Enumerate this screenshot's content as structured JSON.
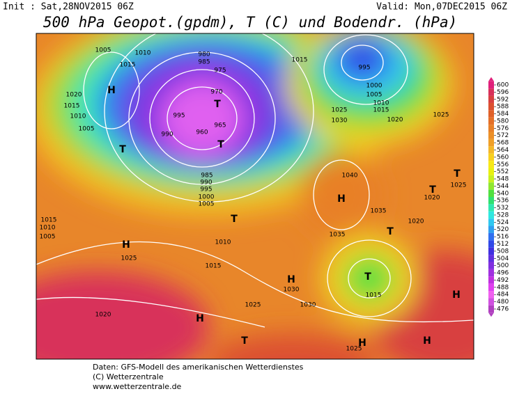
{
  "header": {
    "init": "Init : Sat,28NOV2015 06Z",
    "valid": "Valid: Mon,07DEC2015 06Z",
    "title": "500 hPa Geopot.(gpdm), T (C) und Bodendr. (hPa)"
  },
  "colorbar": {
    "ticks": [
      600,
      596,
      592,
      588,
      584,
      580,
      576,
      572,
      568,
      564,
      560,
      556,
      552,
      548,
      544,
      540,
      536,
      532,
      528,
      524,
      520,
      516,
      512,
      508,
      504,
      500,
      496,
      492,
      488,
      484,
      480,
      476
    ],
    "colors": [
      "#e0207a",
      "#d8305a",
      "#d84040",
      "#dc5030",
      "#e06028",
      "#e47028",
      "#e88028",
      "#ec9028",
      "#f0a028",
      "#f4b828",
      "#f8d020",
      "#f8e818",
      "#e8f010",
      "#c8f020",
      "#90e830",
      "#50e040",
      "#30e070",
      "#30e8b0",
      "#30e8e0",
      "#30c8f0",
      "#30a0f0",
      "#3070f0",
      "#3048e8",
      "#4030e0",
      "#6030e0",
      "#8030e0",
      "#a030e0",
      "#c030e0",
      "#e040f0",
      "#f060f0",
      "#d050e0",
      "#b040c0"
    ]
  },
  "map": {
    "pressure_labels": [
      1005,
      1010,
      1015,
      1020,
      1015,
      1010,
      1005,
      980,
      985,
      975,
      970,
      965,
      960,
      995,
      990,
      985,
      990,
      995,
      1000,
      1005,
      1010,
      1015,
      1025,
      1020,
      1025,
      1030,
      1030,
      1035,
      1035,
      1040,
      1030,
      1025,
      1015,
      1000,
      1005,
      1010,
      1015,
      1020,
      1025,
      1020,
      1020,
      1015,
      1025,
      1025,
      1015,
      1010,
      1005,
      995
    ],
    "high_markers": [
      "H",
      "H",
      "H",
      "H",
      "H",
      "H",
      "H",
      "H"
    ],
    "low_markers": [
      "T",
      "T",
      "T",
      "T",
      "T",
      "T",
      "T",
      "T",
      "T"
    ]
  },
  "footer": {
    "line1": "Daten: GFS-Modell des amerikanischen Wetterdienstes",
    "line2": "(C) Wetterzentrale",
    "line3": "www.wetterzentrale.de"
  }
}
